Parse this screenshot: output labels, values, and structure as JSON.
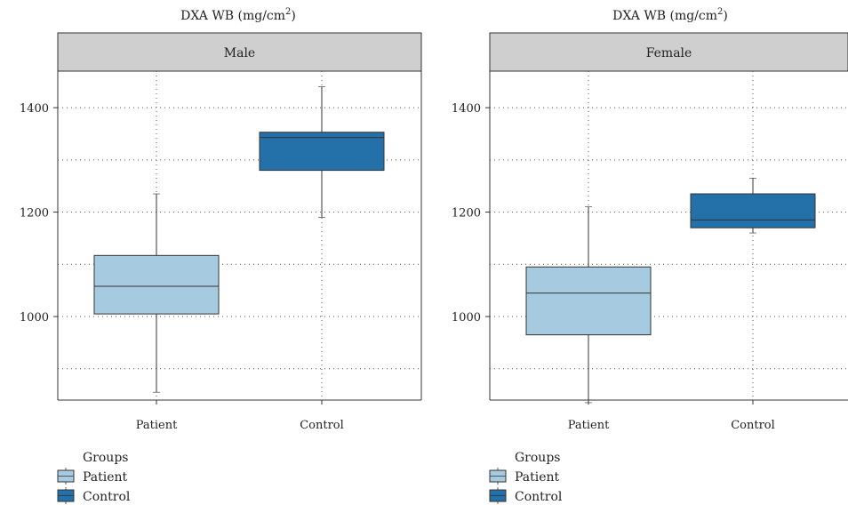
{
  "chart_data": [
    {
      "type": "box",
      "title": "DXA WB (mg/cm",
      "title_superscript": "2",
      "title_suffix": ")",
      "panel": "Male",
      "categories": [
        "Patient",
        "Control"
      ],
      "yticks": [
        1000,
        1200,
        1400
      ],
      "ylim": [
        840,
        1470
      ],
      "grid": true,
      "series": [
        {
          "name": "Patient",
          "color": "#a6cbe0",
          "min": 855,
          "q1": 1005,
          "median": 1058,
          "q3": 1117,
          "max": 1235
        },
        {
          "name": "Control",
          "color": "#2471a9",
          "min": 1190,
          "q1": 1280,
          "median": 1343,
          "q3": 1353,
          "max": 1440
        }
      ]
    },
    {
      "type": "box",
      "title": "DXA WB (mg/cm",
      "title_superscript": "2",
      "title_suffix": ")",
      "panel": "Female",
      "categories": [
        "Patient",
        "Control"
      ],
      "yticks": [
        1000,
        1200,
        1400
      ],
      "ylim": [
        840,
        1470
      ],
      "grid": true,
      "series": [
        {
          "name": "Patient",
          "color": "#a6cbe0",
          "min": 835,
          "q1": 965,
          "median": 1045,
          "q3": 1095,
          "max": 1210
        },
        {
          "name": "Control",
          "color": "#2471a9",
          "min": 1160,
          "q1": 1170,
          "median": 1185,
          "q3": 1235,
          "max": 1265
        }
      ]
    }
  ],
  "legend": {
    "title": "Groups",
    "items": [
      {
        "label": "Patient",
        "color": "#a6cbe0"
      },
      {
        "label": "Control",
        "color": "#2471a9"
      }
    ]
  }
}
